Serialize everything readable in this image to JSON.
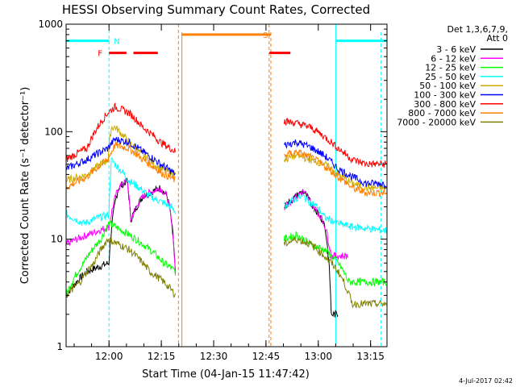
{
  "chart_data": {
    "type": "line",
    "title": "HESSI Observing Summary Count Rates, Corrected",
    "xlabel": "Start Time (04-Jan-15 11:47:42)",
    "ylabel": "Corrected Count Rate (s⁻¹ detector⁻¹)",
    "yscale": "log",
    "ylim": [
      1,
      1000
    ],
    "xlim_minutes": [
      0,
      92
    ],
    "x_ticks": [
      {
        "label": "12:00",
        "min": 12.3
      },
      {
        "label": "12:15",
        "min": 27.3
      },
      {
        "label": "12:30",
        "min": 42.3
      },
      {
        "label": "12:45",
        "min": 57.3
      },
      {
        "label": "13:00",
        "min": 72.3
      },
      {
        "label": "13:15",
        "min": 87.3
      }
    ],
    "y_ticks": [
      {
        "label": "1",
        "value": 1
      },
      {
        "label": "10",
        "value": 10
      },
      {
        "label": "100",
        "value": 100
      },
      {
        "label": "1000",
        "value": 1000
      }
    ],
    "legend": {
      "placement": "right",
      "header": [
        "Det 1,3,6,7,9,",
        "Att 0"
      ]
    },
    "series": [
      {
        "name": "3 - 6 keV",
        "color": "#000000",
        "x": [
          0,
          6,
          12.3,
          15,
          17.5,
          18.5,
          22,
          27,
          29,
          31.4
        ],
        "y": [
          3,
          5,
          6,
          30,
          35,
          15,
          25,
          30,
          25,
          4
        ]
      },
      {
        "name": "6 - 12 keV",
        "color": "#ff00ff",
        "x": [
          0,
          12.3,
          15,
          17.5,
          18.5,
          22,
          27,
          29,
          31.4
        ],
        "y": [
          9,
          13,
          30,
          35,
          15,
          25,
          30,
          25,
          4
        ]
      },
      {
        "name": "12 - 25 keV",
        "color": "#00ff00",
        "x": [
          0,
          5,
          10,
          12.3,
          20,
          24,
          28,
          31.4
        ],
        "y": [
          3,
          6,
          10,
          14,
          10,
          8,
          6,
          5
        ]
      },
      {
        "name": "25 - 50 keV",
        "color": "#00ffff",
        "x": [
          0,
          5,
          12.3,
          13,
          14,
          18,
          24,
          30,
          31.4
        ],
        "y": [
          17,
          14,
          17,
          55,
          50,
          35,
          25,
          20,
          18
        ]
      },
      {
        "name": "50 - 100 keV",
        "color": "#ccaa00",
        "x": [
          0,
          6,
          12,
          13,
          14,
          18,
          22,
          27,
          31.4
        ],
        "y": [
          35,
          40,
          55,
          110,
          110,
          80,
          60,
          45,
          40
        ]
      },
      {
        "name": "100 - 300 keV",
        "color": "#0000ff",
        "x": [
          0,
          6,
          12,
          14,
          18,
          22,
          27,
          31.4
        ],
        "y": [
          45,
          55,
          70,
          85,
          80,
          65,
          50,
          40
        ]
      },
      {
        "name": "300 - 800 keV",
        "color": "#ff0000",
        "x": [
          0,
          6,
          12,
          14,
          18,
          22,
          27,
          31.4
        ],
        "y": [
          55,
          70,
          150,
          170,
          150,
          110,
          80,
          65
        ]
      },
      {
        "name": "800 - 7000 keV",
        "color": "#ff7f00",
        "x": [
          0,
          6,
          12,
          14,
          18,
          22,
          27,
          31.4
        ],
        "y": [
          30,
          38,
          55,
          75,
          70,
          55,
          42,
          35
        ]
      },
      {
        "name": "7000 - 20000 keV",
        "color": "#808000",
        "x": [
          0,
          4,
          8,
          12,
          15,
          18,
          24,
          28,
          31.4
        ],
        "y": [
          3,
          4,
          6,
          10,
          9,
          8,
          5,
          4,
          3
        ]
      }
    ],
    "series_after_gap": [
      {
        "name": "3 - 6 keV",
        "x": [
          62.5,
          64,
          66,
          68,
          70,
          72,
          74,
          76,
          78
        ],
        "y": [
          20,
          22,
          25,
          28,
          22,
          18,
          14,
          2,
          2
        ]
      },
      {
        "name": "6 - 12 keV",
        "x": [
          62.5,
          64,
          66,
          68,
          70,
          72,
          74,
          76,
          78,
          81
        ],
        "y": [
          20,
          22,
          25,
          28,
          22,
          18,
          14,
          7,
          7,
          7
        ]
      },
      {
        "name": "12 - 25 keV",
        "x": [
          62.5,
          66,
          70,
          74,
          78,
          81,
          92
        ],
        "y": [
          10,
          11,
          9,
          8,
          6,
          4,
          4
        ]
      },
      {
        "name": "25 - 50 keV",
        "x": [
          62.5,
          64,
          66,
          68,
          70,
          72,
          74,
          78,
          82,
          92
        ],
        "y": [
          20,
          22,
          24,
          25,
          22,
          20,
          16,
          14,
          13,
          12
        ]
      },
      {
        "name": "50 - 100 keV",
        "x": [
          62.5,
          66,
          70,
          74,
          78,
          82,
          86,
          92
        ],
        "y": [
          55,
          60,
          55,
          50,
          40,
          33,
          30,
          30
        ]
      },
      {
        "name": "100 - 300 keV",
        "x": [
          62.5,
          66,
          70,
          74,
          78,
          82,
          86,
          92
        ],
        "y": [
          75,
          80,
          72,
          60,
          45,
          38,
          33,
          33
        ]
      },
      {
        "name": "300 - 800 keV",
        "x": [
          62.5,
          66,
          70,
          74,
          78,
          82,
          86,
          92
        ],
        "y": [
          125,
          120,
          110,
          90,
          70,
          55,
          50,
          50
        ]
      },
      {
        "name": "800 - 7000 keV",
        "x": [
          62.5,
          66,
          70,
          74,
          78,
          82,
          86,
          92
        ],
        "y": [
          60,
          65,
          58,
          48,
          38,
          30,
          27,
          27
        ]
      },
      {
        "name": "7000 - 20000 keV",
        "x": [
          62.5,
          66,
          70,
          74,
          78,
          82,
          92
        ],
        "y": [
          9,
          10,
          9,
          7,
          5,
          2.5,
          2.5
        ]
      }
    ],
    "observing_flags": [
      {
        "label": "N",
        "color": "#00ffff",
        "y": 700,
        "x_start": 0,
        "x_end": 12.3
      },
      {
        "label": "",
        "color": "#00ffff",
        "y": 700,
        "x_start": 77.3,
        "x_end": 92
      },
      {
        "label": "S",
        "color": "#ff7f00",
        "y": 800,
        "x_start": 33.2,
        "x_end": 58.7
      },
      {
        "label": "F",
        "color": "#ff0000",
        "y": 540,
        "x_start": 12.3,
        "x_end": 17.3
      },
      {
        "label": "",
        "color": "#ff0000",
        "y": 540,
        "x_start": 19.3,
        "x_end": 26.3
      },
      {
        "label": "",
        "color": "#ff0000",
        "y": 540,
        "x_start": 58.3,
        "x_end": 64.3
      }
    ],
    "intervals": [
      {
        "flag": "N",
        "color": "#00ffff",
        "x_start": 12.3,
        "x_end": 77.3
      },
      {
        "flag": "S",
        "color": "#ff7f00",
        "x_start": 32.2,
        "x_end": 58.2
      }
    ],
    "footer_date": "4-Jul-2017 02:42"
  }
}
